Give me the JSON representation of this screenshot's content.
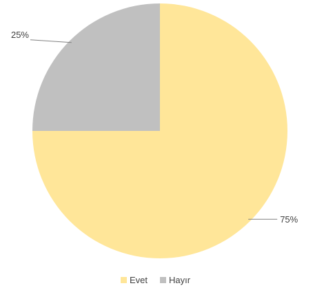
{
  "chart_data": {
    "type": "pie",
    "title": "",
    "series": [
      {
        "name": "Evet",
        "value": 75,
        "label": "75%",
        "color": "#FFE699"
      },
      {
        "name": "Hayır",
        "value": 25,
        "label": "25%",
        "color": "#C0C0C0"
      }
    ],
    "legend_position": "bottom",
    "label_color": "#404040",
    "leader_color": "#808080"
  }
}
